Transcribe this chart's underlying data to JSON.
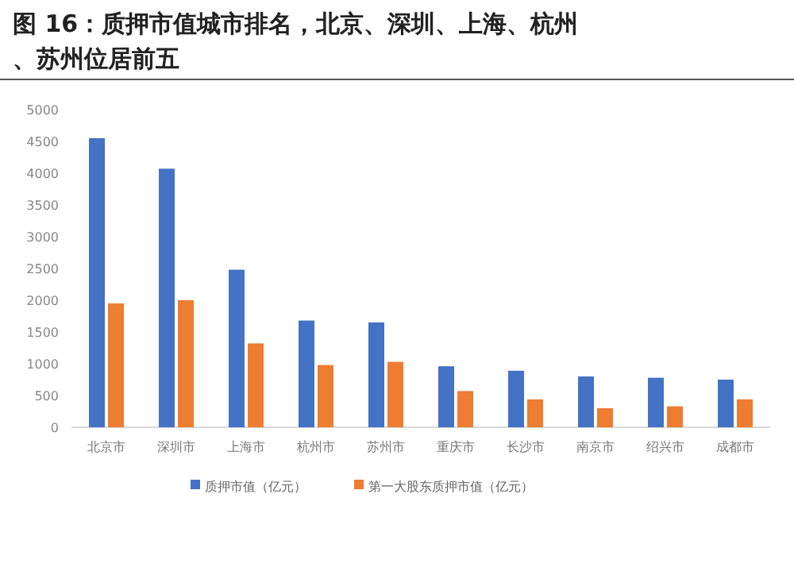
{
  "chart_data": {
    "type": "bar",
    "title": "图 16：质押市值城市排名，北京、深圳、上海、杭州、苏州位居前五",
    "categories": [
      "北京市",
      "深圳市",
      "上海市",
      "杭州市",
      "苏州市",
      "重庆市",
      "长沙市",
      "南京市",
      "绍兴市",
      "成都市"
    ],
    "series": [
      {
        "name": "质押市值（亿元）",
        "color": "#4472c4",
        "values": [
          4550,
          4070,
          2480,
          1680,
          1650,
          960,
          890,
          800,
          780,
          750
        ]
      },
      {
        "name": "第一大股东质押市值（亿元）",
        "color": "#ed7d31",
        "values": [
          1950,
          2000,
          1320,
          980,
          1030,
          570,
          440,
          300,
          330,
          440
        ]
      }
    ],
    "ylim": [
      0,
      5000
    ],
    "yticks": [
      0,
      500,
      1000,
      1500,
      2000,
      2500,
      3000,
      3500,
      4000,
      4500,
      5000
    ],
    "grid": false,
    "legend": "bottom"
  }
}
